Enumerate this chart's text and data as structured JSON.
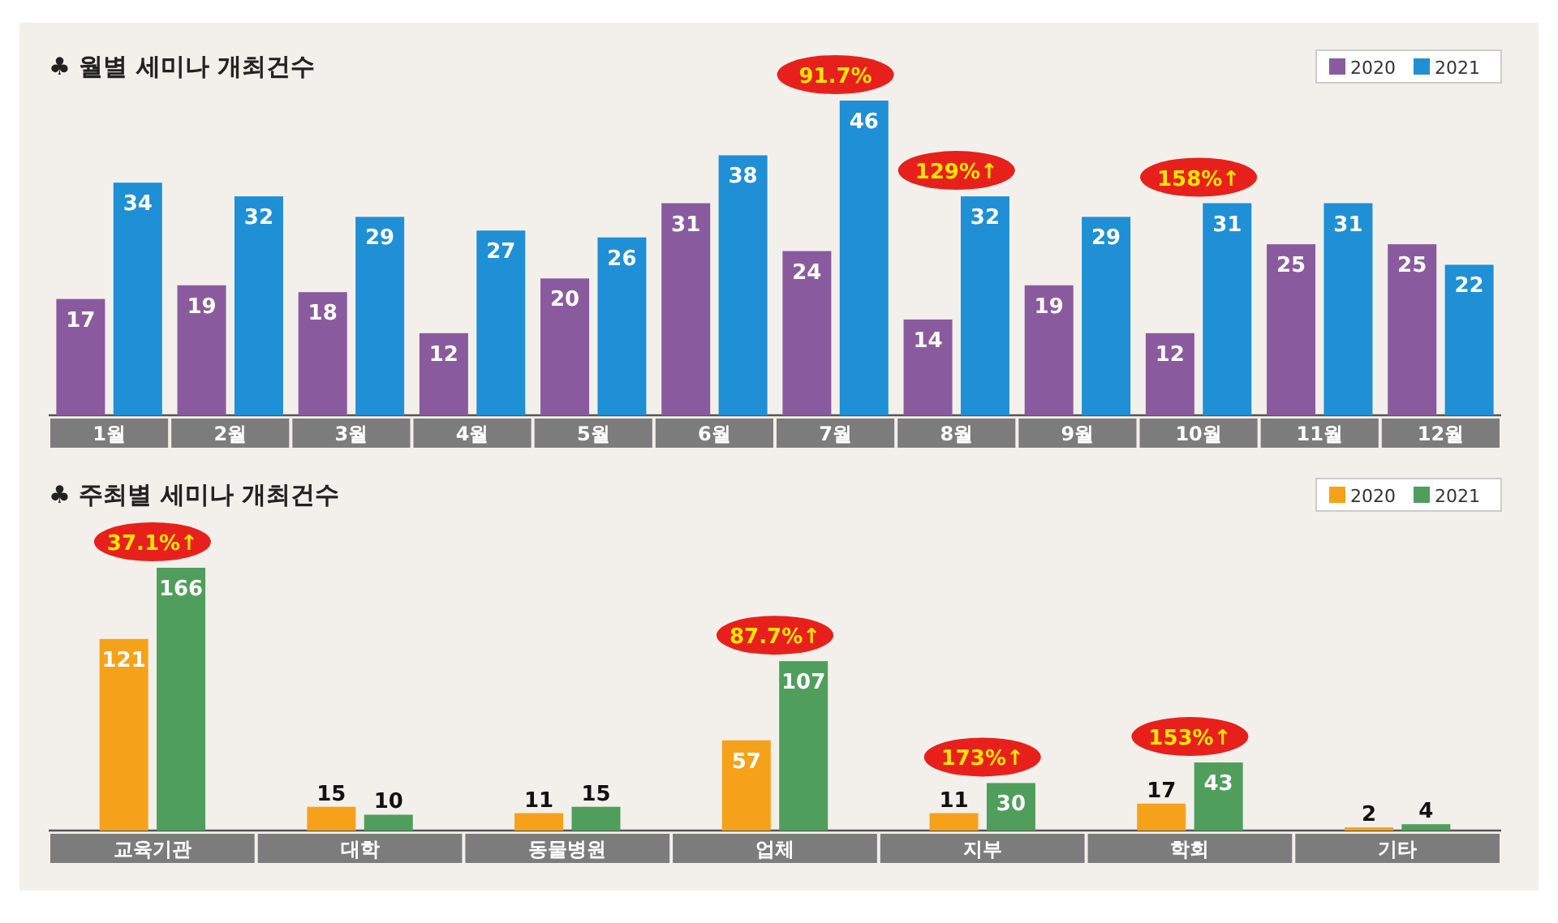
{
  "chart_data": [
    {
      "type": "bar",
      "title": "♣ 월별 세미나 개최건수",
      "categories": [
        "1월",
        "2월",
        "3월",
        "4월",
        "5월",
        "6월",
        "7월",
        "8월",
        "9월",
        "10월",
        "11월",
        "12월"
      ],
      "series": [
        {
          "name": "2020",
          "color": "#8a5a9e",
          "values": [
            17,
            19,
            18,
            12,
            20,
            31,
            24,
            14,
            19,
            12,
            25,
            25
          ]
        },
        {
          "name": "2021",
          "color": "#1f8fd6",
          "values": [
            34,
            32,
            29,
            27,
            26,
            38,
            46,
            32,
            29,
            31,
            31,
            22
          ]
        }
      ],
      "data_labels": true,
      "legend": "top right",
      "annotations": [
        {
          "text": "91.7%",
          "x": "7월",
          "y": 46
        },
        {
          "text": "129%↑",
          "x": "8월",
          "y": 32
        },
        {
          "text": "158%↑",
          "x": "10월",
          "y": 31
        }
      ]
    },
    {
      "type": "bar",
      "title": "♣ 주최별 세미나 개최건수",
      "categories": [
        "교육기관",
        "대학",
        "동물병원",
        "업체",
        "지부",
        "학회",
        "기타"
      ],
      "series": [
        {
          "name": "2020",
          "color": "#f5a21a",
          "values": [
            121,
            15,
            11,
            57,
            11,
            17,
            2
          ]
        },
        {
          "name": "2021",
          "color": "#4f9e5c",
          "values": [
            166,
            10,
            15,
            107,
            30,
            43,
            4
          ]
        }
      ],
      "data_labels": true,
      "legend": "top right",
      "annotations": [
        {
          "text": "37.1%↑",
          "x": "교육기관",
          "y": 166
        },
        {
          "text": "87.7%↑",
          "x": "업체",
          "y": 107
        },
        {
          "text": "173%↑",
          "x": "지부",
          "y": 30
        },
        {
          "text": "153%↑",
          "x": "학회",
          "y": 43
        }
      ]
    }
  ]
}
